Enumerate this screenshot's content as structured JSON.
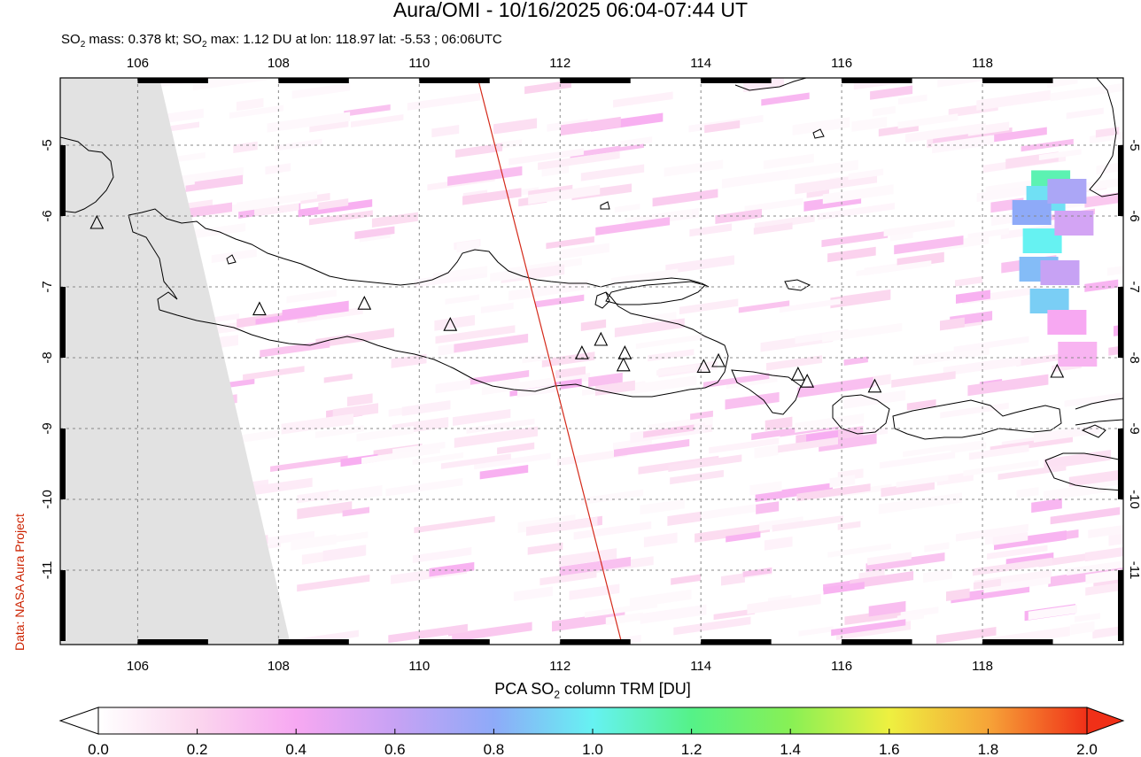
{
  "header": {
    "title": "Aura/OMI - 10/16/2025 06:04-07:44 UT",
    "subtitle_parts": [
      "SO",
      "2",
      " mass: 0.378 kt; SO",
      "2",
      " max: 1.12 DU at lon: 118.97 lat: -5.53 ; 06:06UTC"
    ]
  },
  "credit": "Data: NASA Aura Project",
  "map": {
    "lon_range": [
      104.9,
      120.0
    ],
    "lat_range": [
      -12.05,
      -4.05
    ],
    "x_ticks": [
      "106",
      "108",
      "110",
      "112",
      "114",
      "116",
      "118"
    ],
    "x_tick_values": [
      106,
      108,
      110,
      112,
      114,
      116,
      118
    ],
    "y_ticks": [
      "-5",
      "-6",
      "-7",
      "-8",
      "-9",
      "-10",
      "-11"
    ],
    "y_tick_values": [
      -5,
      -6,
      -7,
      -8,
      -9,
      -10,
      -11
    ],
    "grid": "dashed",
    "volcanoes": [
      [
        105.42,
        -6.1
      ],
      [
        107.73,
        -7.32
      ],
      [
        109.22,
        -7.24
      ],
      [
        110.44,
        -7.54
      ],
      [
        112.31,
        -7.94
      ],
      [
        112.58,
        -7.75
      ],
      [
        112.92,
        -7.94
      ],
      [
        112.9,
        -8.11
      ],
      [
        114.04,
        -8.13
      ],
      [
        114.25,
        -8.05
      ],
      [
        115.38,
        -8.24
      ],
      [
        115.51,
        -8.34
      ],
      [
        116.47,
        -8.41
      ],
      [
        119.06,
        -8.2
      ]
    ],
    "orbit_track": [
      [
        110.83,
        -4.05
      ],
      [
        112.88,
        -12.05
      ]
    ],
    "so2_max_cells": [
      {
        "lon": 118.97,
        "lat": -5.53,
        "du": 1.12
      },
      {
        "lon": 118.9,
        "lat": -5.75,
        "du": 0.95
      },
      {
        "lon": 118.85,
        "lat": -6.35,
        "du": 1.0
      },
      {
        "lon": 118.8,
        "lat": -6.75,
        "du": 0.85
      },
      {
        "lon": 118.95,
        "lat": -7.2,
        "du": 0.9
      },
      {
        "lon": 118.7,
        "lat": -5.95,
        "du": 0.8
      },
      {
        "lon": 119.2,
        "lat": -5.65,
        "du": 0.7
      },
      {
        "lon": 119.3,
        "lat": -6.1,
        "du": 0.55
      },
      {
        "lon": 119.1,
        "lat": -6.8,
        "du": 0.6
      },
      {
        "lon": 119.2,
        "lat": -7.5,
        "du": 0.4
      },
      {
        "lon": 119.35,
        "lat": -7.95,
        "du": 0.35
      }
    ]
  },
  "colorbar": {
    "title_parts": [
      "PCA SO",
      "2",
      " column TRM [DU]"
    ],
    "ticks": [
      "0.0",
      "0.2",
      "0.4",
      "0.6",
      "0.8",
      "1.0",
      "1.2",
      "1.4",
      "1.6",
      "1.8",
      "2.0"
    ],
    "tick_values": [
      0.0,
      0.2,
      0.4,
      0.6,
      0.8,
      1.0,
      1.2,
      1.4,
      1.6,
      1.8,
      2.0
    ],
    "colors": [
      "#ffffff",
      "#fbd6ee",
      "#f7a8f2",
      "#c7a2f4",
      "#8eaaf8",
      "#66f2f2",
      "#55f288",
      "#88f055",
      "#eef040",
      "#f6a438",
      "#f03018"
    ]
  }
}
